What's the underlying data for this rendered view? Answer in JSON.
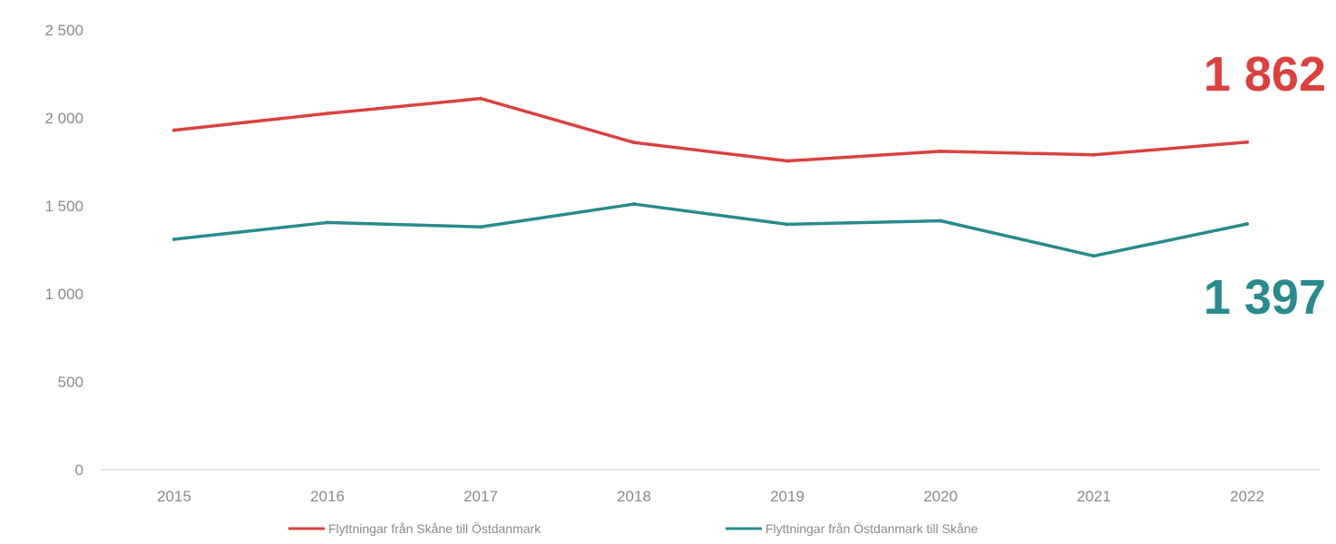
{
  "chart_data": {
    "type": "line",
    "title": "",
    "xlabel": "",
    "ylabel": "",
    "categories": [
      "2015",
      "2016",
      "2017",
      "2018",
      "2019",
      "2020",
      "2021",
      "2022"
    ],
    "ylim": [
      0,
      2500
    ],
    "yticks": [
      0,
      500,
      1000,
      1500,
      2000,
      2500
    ],
    "ytick_labels": [
      "0",
      "500",
      "1 000",
      "1 500",
      "2 000",
      "2 500"
    ],
    "grid": false,
    "legend_position": "bottom",
    "series": [
      {
        "name": "Flyttningar från Skåne till Östdanmark",
        "color": "#d9423f",
        "values": [
          1930,
          2025,
          2110,
          1860,
          1755,
          1810,
          1790,
          1862
        ],
        "end_label": "1 862"
      },
      {
        "name": "Flyttningar från Östdanmark till Skåne",
        "color": "#2a8a8c",
        "values": [
          1310,
          1405,
          1380,
          1510,
          1395,
          1415,
          1215,
          1397
        ],
        "end_label": "1 397"
      }
    ]
  }
}
